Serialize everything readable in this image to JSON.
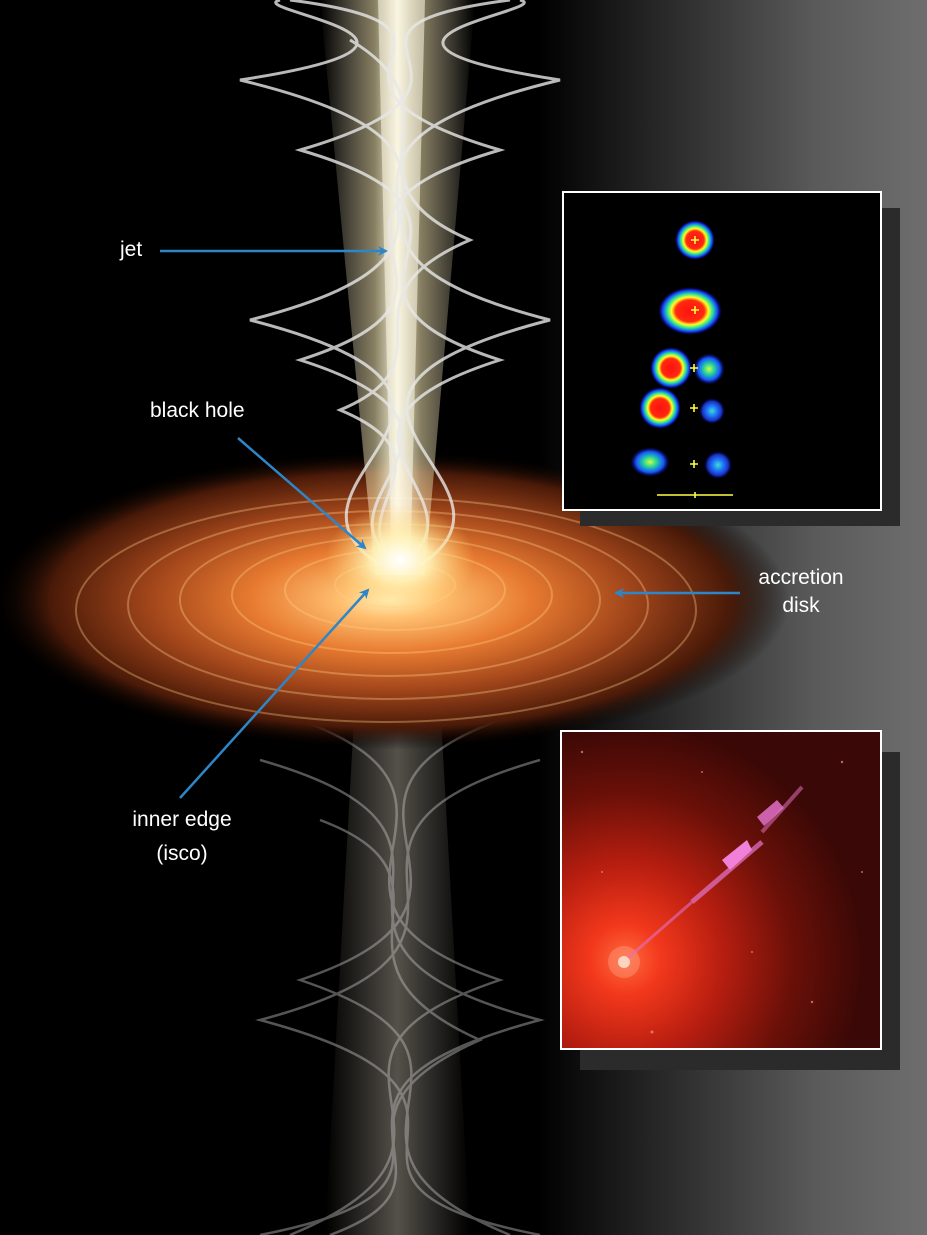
{
  "labels": {
    "jet": "jet",
    "black_hole": "black hole",
    "accretion_disk_line1": "accretion",
    "accretion_disk_line2": "disk",
    "inner_edge_line1": "inner edge",
    "inner_edge_line2": "(isco)"
  },
  "colors": {
    "arrow": "#2d86c8",
    "label_text": "#ffffff",
    "disk_core": "#f08a3c",
    "jet_core": "#fff6d8",
    "inset_border": "#ffffff",
    "marker_plus": "#ffff40"
  },
  "insets": {
    "radio_blob_map": {
      "rows": 5,
      "description_icon": "blob-map"
    },
    "optical_jet_image": {
      "description_icon": "galaxy-jet"
    }
  }
}
